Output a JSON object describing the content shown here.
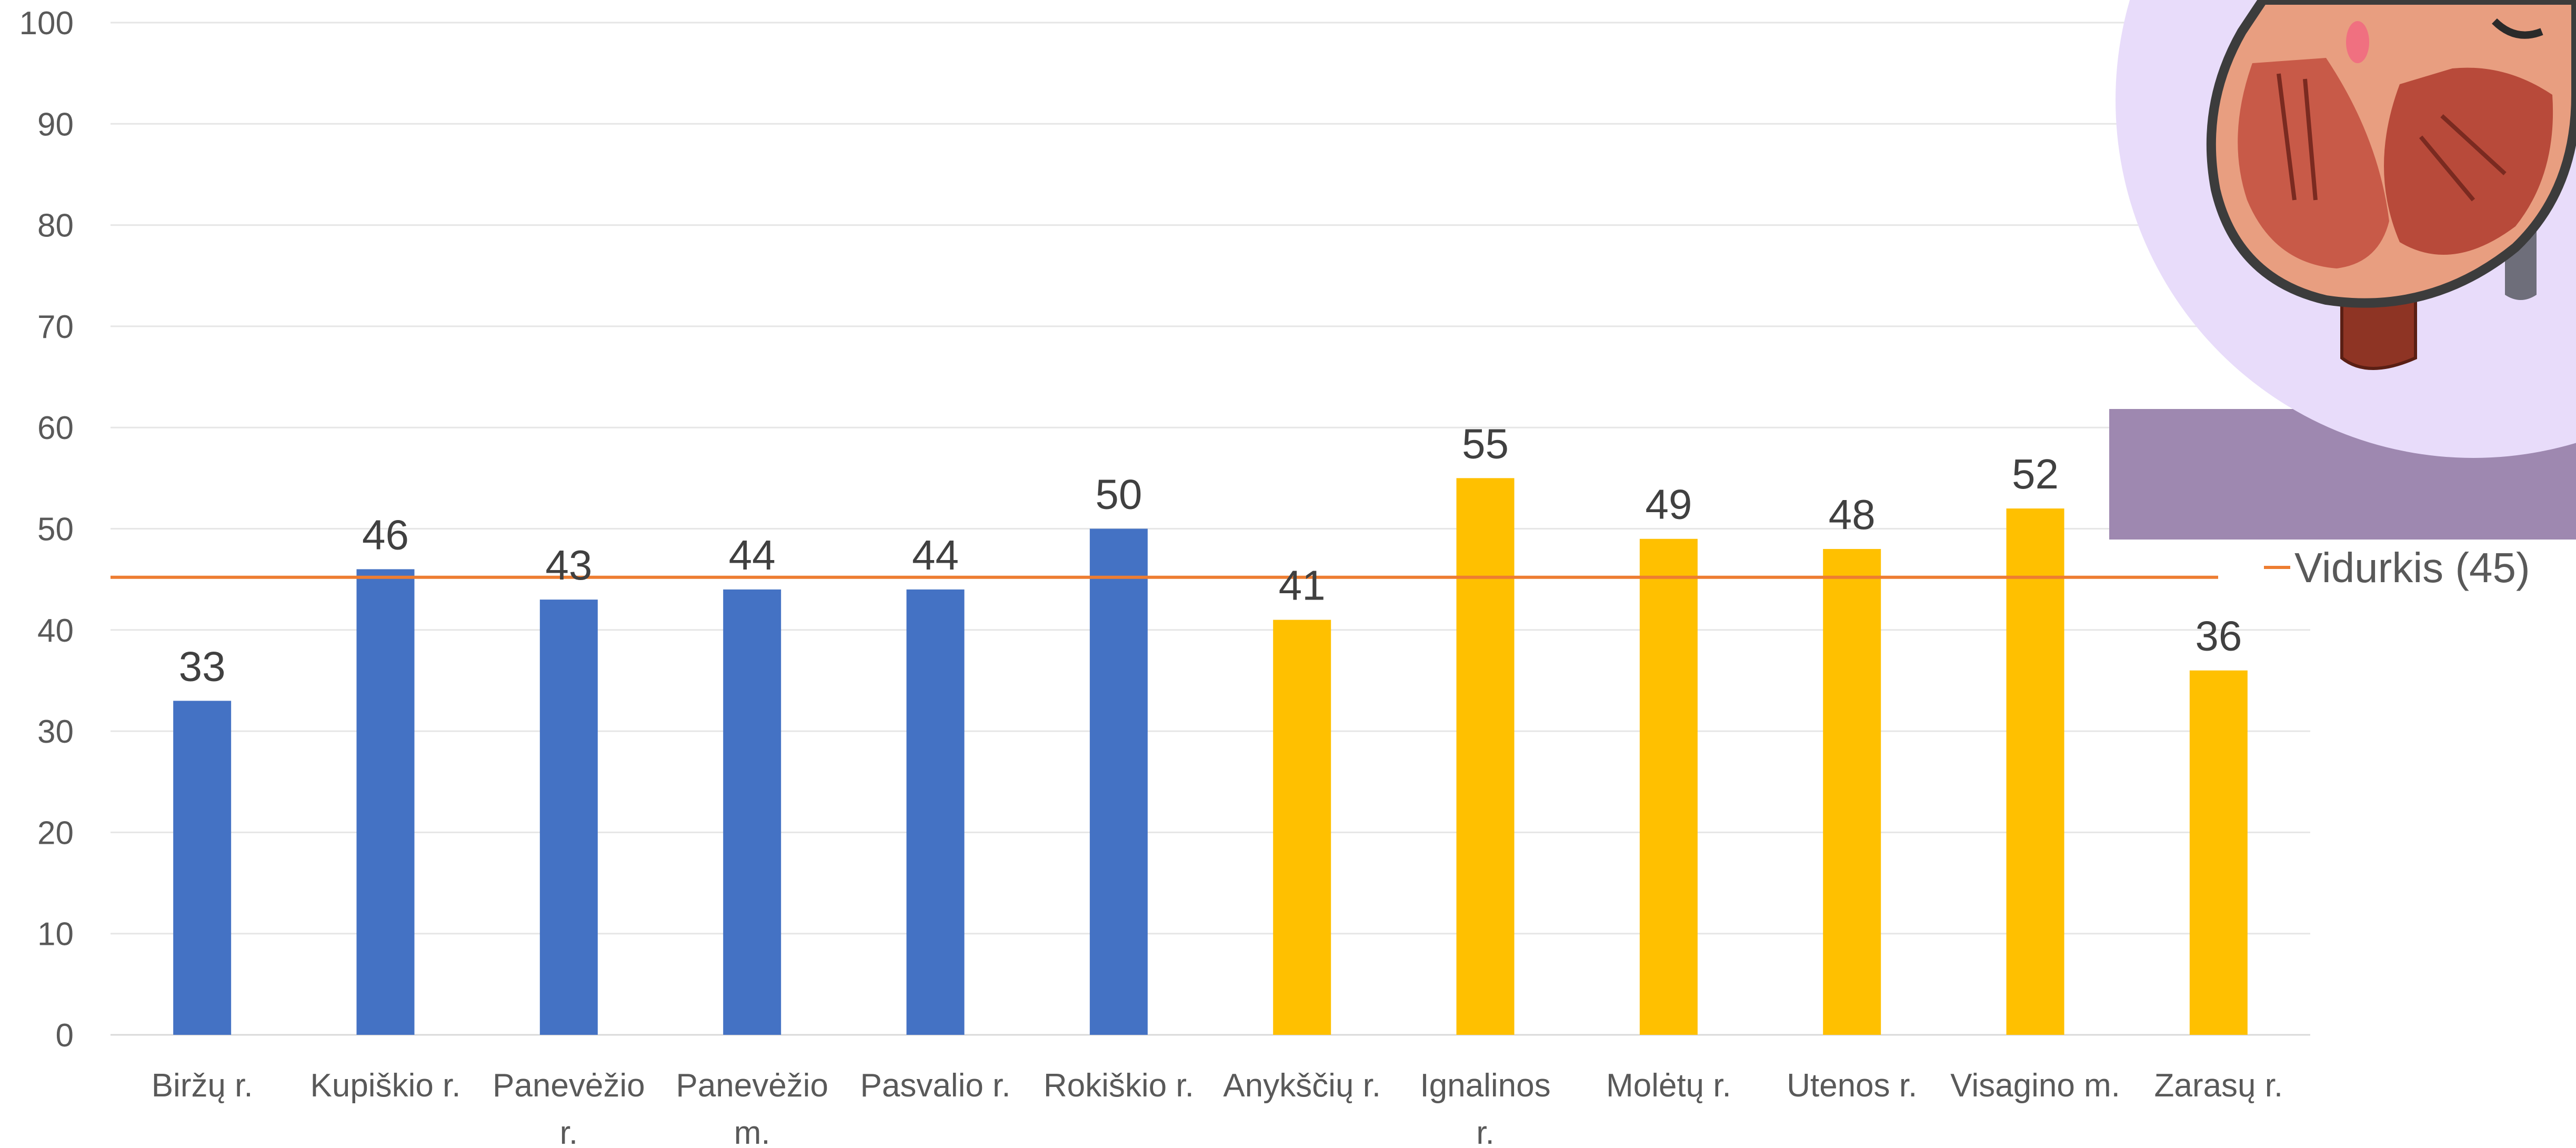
{
  "chart_data": {
    "type": "bar",
    "categories": [
      "Biržų r.",
      "Kupiškio r.",
      "Panevėžio r.",
      "Panevėžio m.",
      "Pasvalio r.",
      "Rokiškio r.",
      "Anykščių r.",
      "Ignalinos r.",
      "Molėtų r.",
      "Utenos r.",
      "Visagino m.",
      "Zarasų r."
    ],
    "values": [
      33,
      46,
      43,
      44,
      44,
      50,
      41,
      55,
      49,
      48,
      52,
      36
    ],
    "data_labels": [
      "33",
      "46",
      "43",
      "44",
      "44",
      "50",
      "41",
      "55",
      "49",
      "48",
      "52",
      "36"
    ],
    "bar_colors": [
      "#4472C4",
      "#4472C4",
      "#4472C4",
      "#4472C4",
      "#4472C4",
      "#4472C4",
      "#FFC000",
      "#FFC000",
      "#FFC000",
      "#FFC000",
      "#FFC000",
      "#FFC000"
    ],
    "yticks": [
      "0",
      "10",
      "20",
      "30",
      "40",
      "50",
      "60",
      "70",
      "80",
      "90",
      "100"
    ],
    "ylim": [
      0,
      100
    ],
    "grid": true,
    "average_line": {
      "name": "Vidurkis (45)",
      "value": 45.2,
      "color": "#ED7D31"
    },
    "legend_position": "right",
    "decoration": {
      "name": "heart-illustration-icon",
      "circle_color": "#E8DCFA",
      "panel_color": "#9E88B0"
    }
  }
}
